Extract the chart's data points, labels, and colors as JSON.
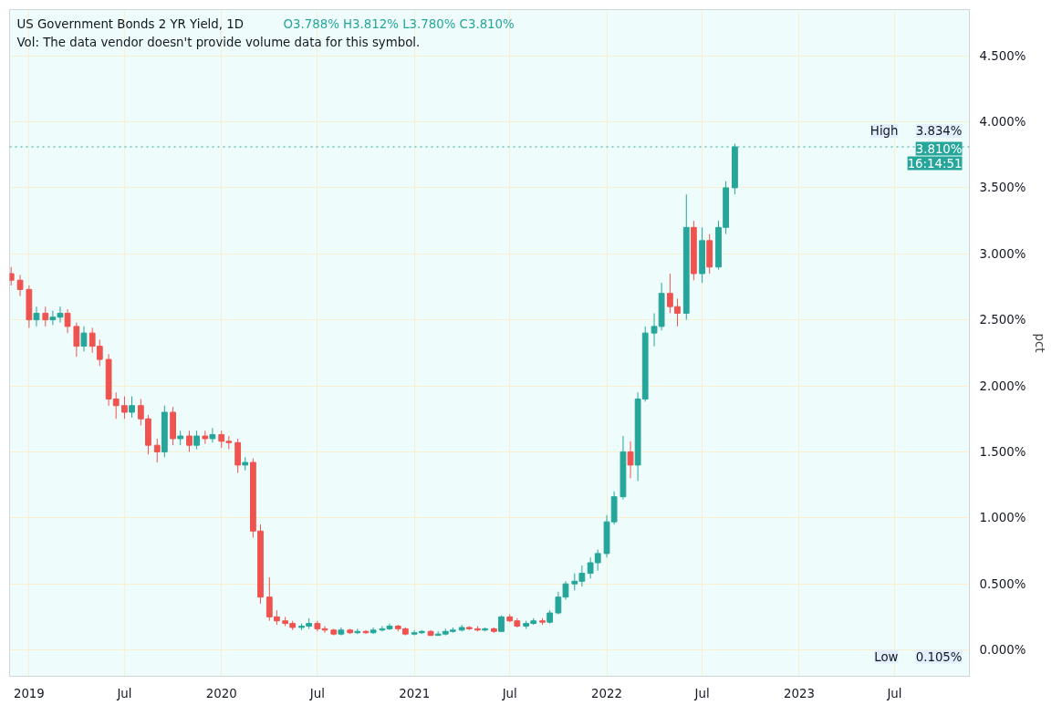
{
  "chart_data": {
    "type": "candlestick",
    "title": "US Government Bonds 2 YR Yield, 1D",
    "ylabel": "pct",
    "annotations": [
      "O3.788%  H3.812%  L3.780%  C3.810%",
      "Vol: The data vendor doesn't provide volume data for this symbol.",
      {
        "text": "High",
        "y": 3.834
      },
      {
        "text": "3.834%",
        "y": 3.834
      },
      {
        "text": "3.810%",
        "y": 3.81
      },
      {
        "text": "16:14:51",
        "y": 3.81
      },
      "Low",
      "0.105%"
    ],
    "x": [
      "2018-11-28",
      "2018-12-15",
      "2019-01-01",
      "2019-01-15",
      "2019-02-01",
      "2019-02-15",
      "2019-03-01",
      "2019-03-15",
      "2019-04-01",
      "2019-04-15",
      "2019-05-01",
      "2019-05-15",
      "2019-06-01",
      "2019-06-15",
      "2019-07-01",
      "2019-07-15",
      "2019-08-01",
      "2019-08-15",
      "2019-09-01",
      "2019-09-15",
      "2019-10-01",
      "2019-10-15",
      "2019-11-01",
      "2019-11-15",
      "2019-12-01",
      "2019-12-15",
      "2020-01-01",
      "2020-01-15",
      "2020-02-01",
      "2020-02-15",
      "2020-03-01",
      "2020-03-15",
      "2020-04-01",
      "2020-04-15",
      "2020-05-01",
      "2020-05-15",
      "2020-06-01",
      "2020-06-15",
      "2020-07-01",
      "2020-07-15",
      "2020-08-01",
      "2020-08-15",
      "2020-09-01",
      "2020-09-15",
      "2020-10-01",
      "2020-10-15",
      "2020-11-01",
      "2020-11-15",
      "2020-12-01",
      "2020-12-15",
      "2021-01-01",
      "2021-01-15",
      "2021-02-01",
      "2021-02-15",
      "2021-03-01",
      "2021-03-15",
      "2021-04-01",
      "2021-04-15",
      "2021-05-01",
      "2021-05-15",
      "2021-06-01",
      "2021-06-15",
      "2021-07-01",
      "2021-07-15",
      "2021-08-01",
      "2021-08-15",
      "2021-09-01",
      "2021-09-15",
      "2021-10-01",
      "2021-10-15",
      "2021-11-01",
      "2021-11-15",
      "2021-12-01",
      "2021-12-15",
      "2022-01-01",
      "2022-01-15",
      "2022-02-01",
      "2022-02-15",
      "2022-03-01",
      "2022-03-15",
      "2022-04-01",
      "2022-04-15",
      "2022-05-01",
      "2022-05-15",
      "2022-06-01",
      "2022-06-15",
      "2022-07-01",
      "2022-07-15",
      "2022-08-01",
      "2022-08-15",
      "2022-09-01"
    ],
    "ohlc": [
      [
        2.85,
        2.9,
        2.76,
        2.8
      ],
      [
        2.8,
        2.84,
        2.68,
        2.73
      ],
      [
        2.73,
        2.76,
        2.44,
        2.5
      ],
      [
        2.5,
        2.6,
        2.45,
        2.55
      ],
      [
        2.55,
        2.6,
        2.45,
        2.5
      ],
      [
        2.5,
        2.57,
        2.46,
        2.52
      ],
      [
        2.52,
        2.6,
        2.48,
        2.55
      ],
      [
        2.55,
        2.58,
        2.4,
        2.45
      ],
      [
        2.45,
        2.48,
        2.22,
        2.3
      ],
      [
        2.3,
        2.45,
        2.26,
        2.4
      ],
      [
        2.4,
        2.44,
        2.25,
        2.3
      ],
      [
        2.3,
        2.35,
        2.15,
        2.2
      ],
      [
        2.2,
        2.24,
        1.85,
        1.9
      ],
      [
        1.9,
        1.95,
        1.75,
        1.85
      ],
      [
        1.85,
        1.92,
        1.75,
        1.8
      ],
      [
        1.8,
        1.92,
        1.76,
        1.85
      ],
      [
        1.85,
        1.9,
        1.7,
        1.75
      ],
      [
        1.75,
        1.78,
        1.48,
        1.55
      ],
      [
        1.55,
        1.6,
        1.42,
        1.5
      ],
      [
        1.5,
        1.85,
        1.46,
        1.8
      ],
      [
        1.8,
        1.84,
        1.55,
        1.6
      ],
      [
        1.6,
        1.66,
        1.55,
        1.62
      ],
      [
        1.62,
        1.66,
        1.5,
        1.55
      ],
      [
        1.55,
        1.66,
        1.52,
        1.62
      ],
      [
        1.62,
        1.66,
        1.56,
        1.6
      ],
      [
        1.6,
        1.68,
        1.57,
        1.63
      ],
      [
        1.63,
        1.66,
        1.53,
        1.58
      ],
      [
        1.58,
        1.62,
        1.52,
        1.57
      ],
      [
        1.57,
        1.6,
        1.34,
        1.4
      ],
      [
        1.4,
        1.46,
        1.36,
        1.42
      ],
      [
        1.42,
        1.45,
        0.85,
        0.9
      ],
      [
        0.9,
        0.95,
        0.35,
        0.4
      ],
      [
        0.4,
        0.55,
        0.22,
        0.25
      ],
      [
        0.25,
        0.3,
        0.19,
        0.22
      ],
      [
        0.22,
        0.25,
        0.18,
        0.2
      ],
      [
        0.2,
        0.22,
        0.15,
        0.17
      ],
      [
        0.17,
        0.2,
        0.15,
        0.18
      ],
      [
        0.18,
        0.24,
        0.16,
        0.2
      ],
      [
        0.2,
        0.22,
        0.14,
        0.16
      ],
      [
        0.16,
        0.18,
        0.13,
        0.15
      ],
      [
        0.15,
        0.16,
        0.11,
        0.12
      ],
      [
        0.12,
        0.17,
        0.11,
        0.15
      ],
      [
        0.15,
        0.16,
        0.12,
        0.13
      ],
      [
        0.13,
        0.16,
        0.12,
        0.14
      ],
      [
        0.14,
        0.15,
        0.12,
        0.13
      ],
      [
        0.13,
        0.17,
        0.12,
        0.15
      ],
      [
        0.15,
        0.18,
        0.14,
        0.16
      ],
      [
        0.16,
        0.2,
        0.15,
        0.18
      ],
      [
        0.18,
        0.19,
        0.14,
        0.16
      ],
      [
        0.16,
        0.17,
        0.11,
        0.12
      ],
      [
        0.12,
        0.15,
        0.11,
        0.13
      ],
      [
        0.13,
        0.15,
        0.12,
        0.14
      ],
      [
        0.14,
        0.15,
        0.105,
        0.11
      ],
      [
        0.11,
        0.14,
        0.11,
        0.12
      ],
      [
        0.12,
        0.16,
        0.11,
        0.14
      ],
      [
        0.14,
        0.17,
        0.13,
        0.15
      ],
      [
        0.15,
        0.19,
        0.14,
        0.17
      ],
      [
        0.17,
        0.18,
        0.15,
        0.16
      ],
      [
        0.16,
        0.18,
        0.14,
        0.15
      ],
      [
        0.15,
        0.17,
        0.14,
        0.16
      ],
      [
        0.16,
        0.17,
        0.13,
        0.14
      ],
      [
        0.14,
        0.26,
        0.14,
        0.25
      ],
      [
        0.25,
        0.27,
        0.21,
        0.22
      ],
      [
        0.22,
        0.24,
        0.17,
        0.18
      ],
      [
        0.18,
        0.22,
        0.16,
        0.2
      ],
      [
        0.2,
        0.24,
        0.19,
        0.22
      ],
      [
        0.22,
        0.24,
        0.19,
        0.21
      ],
      [
        0.21,
        0.3,
        0.2,
        0.28
      ],
      [
        0.28,
        0.44,
        0.27,
        0.4
      ],
      [
        0.4,
        0.52,
        0.38,
        0.5
      ],
      [
        0.5,
        0.58,
        0.45,
        0.52
      ],
      [
        0.52,
        0.64,
        0.48,
        0.58
      ],
      [
        0.58,
        0.7,
        0.54,
        0.66
      ],
      [
        0.66,
        0.76,
        0.6,
        0.73
      ],
      [
        0.73,
        1.02,
        0.7,
        0.97
      ],
      [
        0.97,
        1.2,
        0.95,
        1.16
      ],
      [
        1.16,
        1.62,
        1.14,
        1.5
      ],
      [
        1.5,
        1.58,
        1.3,
        1.4
      ],
      [
        1.4,
        1.95,
        1.28,
        1.9
      ],
      [
        1.9,
        2.45,
        1.88,
        2.4
      ],
      [
        2.4,
        2.55,
        2.3,
        2.45
      ],
      [
        2.45,
        2.78,
        2.42,
        2.7
      ],
      [
        2.7,
        2.85,
        2.55,
        2.6
      ],
      [
        2.6,
        2.66,
        2.45,
        2.55
      ],
      [
        2.55,
        3.45,
        2.5,
        3.2
      ],
      [
        3.2,
        3.25,
        2.8,
        2.85
      ],
      [
        2.85,
        3.2,
        2.78,
        3.1
      ],
      [
        3.1,
        3.15,
        2.85,
        2.9
      ],
      [
        2.9,
        3.25,
        2.88,
        3.2
      ],
      [
        3.2,
        3.55,
        3.15,
        3.5
      ],
      [
        3.5,
        3.834,
        3.45,
        3.81
      ]
    ],
    "colors": [
      "#ef5350",
      "#ef5350",
      "#ef5350",
      "#26a69a",
      "#ef5350",
      "#26a69a",
      "#26a69a",
      "#ef5350",
      "#ef5350",
      "#26a69a",
      "#ef5350",
      "#ef5350",
      "#ef5350",
      "#ef5350",
      "#ef5350",
      "#26a69a",
      "#ef5350",
      "#ef5350",
      "#ef5350",
      "#26a69a",
      "#ef5350",
      "#26a69a",
      "#ef5350",
      "#26a69a",
      "#ef5350",
      "#26a69a",
      "#ef5350",
      "#ef5350",
      "#ef5350",
      "#26a69a",
      "#ef5350",
      "#ef5350",
      "#ef5350",
      "#ef5350",
      "#ef5350",
      "#ef5350",
      "#26a69a",
      "#26a69a",
      "#ef5350",
      "#ef5350",
      "#ef5350",
      "#26a69a",
      "#ef5350",
      "#26a69a",
      "#ef5350",
      "#26a69a",
      "#26a69a",
      "#26a69a",
      "#ef5350",
      "#ef5350",
      "#26a69a",
      "#26a69a",
      "#ef5350",
      "#26a69a",
      "#26a69a",
      "#26a69a",
      "#26a69a",
      "#ef5350",
      "#ef5350",
      "#26a69a",
      "#ef5350",
      "#26a69a",
      "#ef5350",
      "#ef5350",
      "#26a69a",
      "#26a69a",
      "#ef5350",
      "#26a69a",
      "#26a69a",
      "#26a69a",
      "#26a69a",
      "#26a69a",
      "#26a69a",
      "#26a69a",
      "#26a69a",
      "#26a69a",
      "#26a69a",
      "#ef5350",
      "#26a69a",
      "#26a69a",
      "#26a69a",
      "#26a69a",
      "#ef5350",
      "#ef5350",
      "#26a69a",
      "#ef5350",
      "#26a69a",
      "#ef5350",
      "#26a69a",
      "#26a69a",
      "#26a69a"
    ],
    "xlim": [
      "2018-11-25",
      "2023-11-20"
    ],
    "xticks": [
      {
        "value": "2019-01-01",
        "label": "2019"
      },
      {
        "value": "2019-07-01",
        "label": "Jul"
      },
      {
        "value": "2020-01-01",
        "label": "2020"
      },
      {
        "value": "2020-07-01",
        "label": "Jul"
      },
      {
        "value": "2021-01-01",
        "label": "2021"
      },
      {
        "value": "2021-07-01",
        "label": "Jul"
      },
      {
        "value": "2022-01-01",
        "label": "2022"
      },
      {
        "value": "2022-07-01",
        "label": "Jul"
      },
      {
        "value": "2023-01-01",
        "label": "2023"
      },
      {
        "value": "2023-07-01",
        "label": "Jul"
      }
    ],
    "ylim": [
      -0.2,
      4.85
    ],
    "yticks": [
      {
        "value": 0,
        "label": "0.000%"
      },
      {
        "value": 0.5,
        "label": "0.500%"
      },
      {
        "value": 1,
        "label": "1.000%"
      },
      {
        "value": 1.5,
        "label": "1.500%"
      },
      {
        "value": 2,
        "label": "2.000%"
      },
      {
        "value": 2.5,
        "label": "2.500%"
      },
      {
        "value": 3,
        "label": "3.000%"
      },
      {
        "value": 3.5,
        "label": "3.500%"
      },
      {
        "value": 4,
        "label": "4.000%"
      },
      {
        "value": 4.5,
        "label": "4.500%"
      }
    ],
    "ref_lines": [
      {
        "axis": "y",
        "value": 3.81,
        "color": "#26a69a",
        "line_style": "dotted"
      }
    ],
    "grid": true
  }
}
